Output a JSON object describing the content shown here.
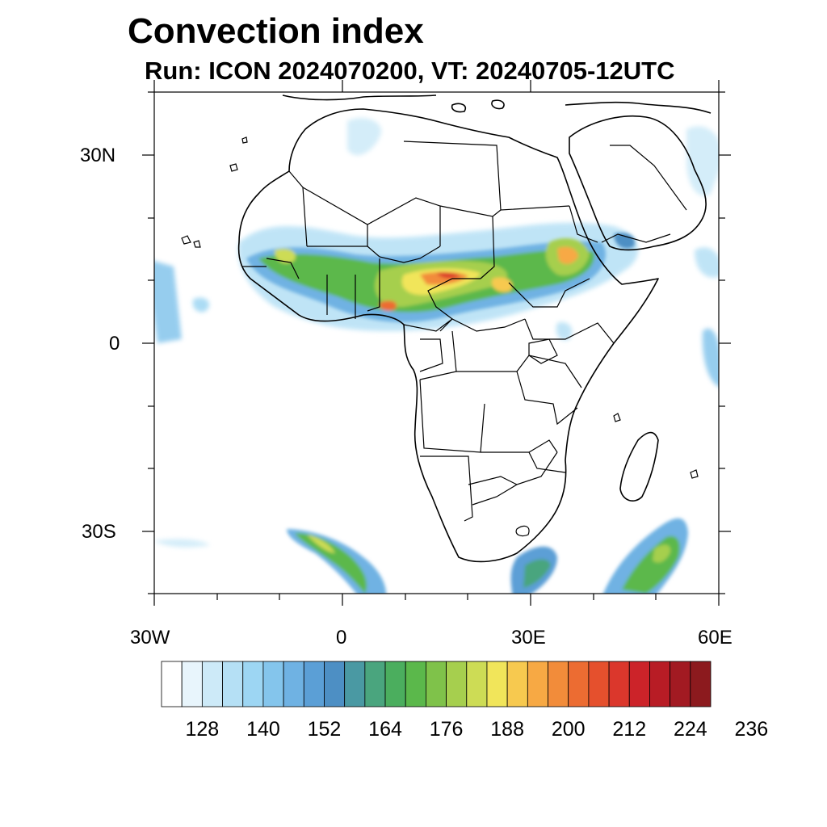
{
  "title": "Convection index",
  "subtitle": "Run: ICON 2024070200,  VT: 20240705-12UTC",
  "map": {
    "extent": {
      "lon": [
        -30,
        60
      ],
      "lat": [
        -40,
        40
      ]
    },
    "lat_ticks": [
      "30N",
      "0",
      "30S"
    ],
    "lon_ticks": [
      "30W",
      "0",
      "30E",
      "60E"
    ]
  },
  "colorbar": {
    "colors": [
      "#ffffff",
      "#e8f5fc",
      "#cdeaf8",
      "#b5e0f5",
      "#9dd6f3",
      "#84c5ec",
      "#6fb2e3",
      "#5b9fd6",
      "#4d8fc4",
      "#4a99a3",
      "#4aa57e",
      "#4bae5e",
      "#5bb84b",
      "#7fc24a",
      "#a6cf4e",
      "#cddc55",
      "#f1e55a",
      "#f7c94f",
      "#f7a944",
      "#f28c3a",
      "#ec6c32",
      "#e5502d",
      "#db372c",
      "#cc2329",
      "#b81c25",
      "#a21a22",
      "#8c1a1e"
    ],
    "labels": [
      "128",
      "140",
      "152",
      "164",
      "176",
      "188",
      "200",
      "212",
      "224",
      "236"
    ]
  }
}
